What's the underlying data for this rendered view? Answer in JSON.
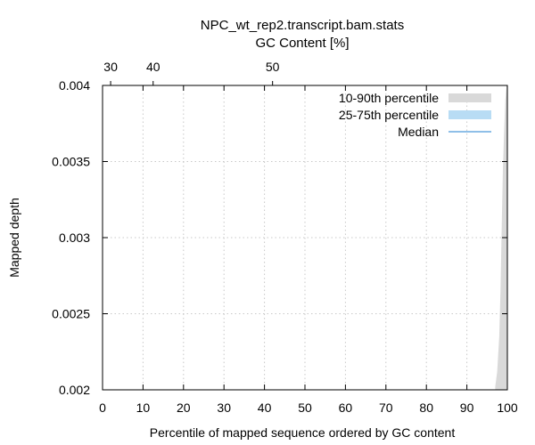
{
  "chart_data": {
    "type": "area",
    "title": "NPC_wt_rep2.transcript.bam.stats",
    "top_axis_label": "GC Content [%]",
    "xlabel": "Percentile of mapped sequence ordered by GC content",
    "ylabel": "Mapped depth",
    "xlim": [
      0,
      100
    ],
    "ylim": [
      0.002,
      0.004
    ],
    "x_ticks": [
      0,
      10,
      20,
      30,
      40,
      50,
      60,
      70,
      80,
      90,
      100
    ],
    "x_tick_labels": [
      "0",
      "10",
      "20",
      "30",
      "40",
      "50",
      "60",
      "70",
      "80",
      "90",
      "100"
    ],
    "y_ticks": [
      0.002,
      0.0025,
      0.003,
      0.0035,
      0.004
    ],
    "y_tick_labels": [
      "0.002",
      "0.0025",
      "0.003",
      "0.0035",
      "0.004"
    ],
    "top_ticks": [
      {
        "label": "30",
        "at_percentile": 2
      },
      {
        "label": "40",
        "at_percentile": 12.5
      },
      {
        "label": "50",
        "at_percentile": 42
      }
    ],
    "grid": true,
    "legend_position": "top-right",
    "legend": [
      {
        "label": "10-90th percentile",
        "color": "#d9d9d9"
      },
      {
        "label": "25-75th percentile",
        "color": "#b8dcf4"
      },
      {
        "label": "Median",
        "color": "#1f7fd1"
      }
    ],
    "series": [
      {
        "name": "10-90th percentile",
        "color": "#d9d9d9",
        "x": [
          97.0,
          97.5,
          98.0,
          98.3,
          98.6,
          98.9,
          99.2,
          99.5,
          99.8,
          100.0
        ],
        "upper": [
          0.00202,
          0.00212,
          0.00235,
          0.00265,
          0.00305,
          0.00345,
          0.0037,
          0.0039,
          0.004,
          0.004
        ],
        "lower": [
          0.002,
          0.002,
          0.002,
          0.002,
          0.002,
          0.002,
          0.002,
          0.002,
          0.002,
          0.002
        ]
      }
    ]
  }
}
